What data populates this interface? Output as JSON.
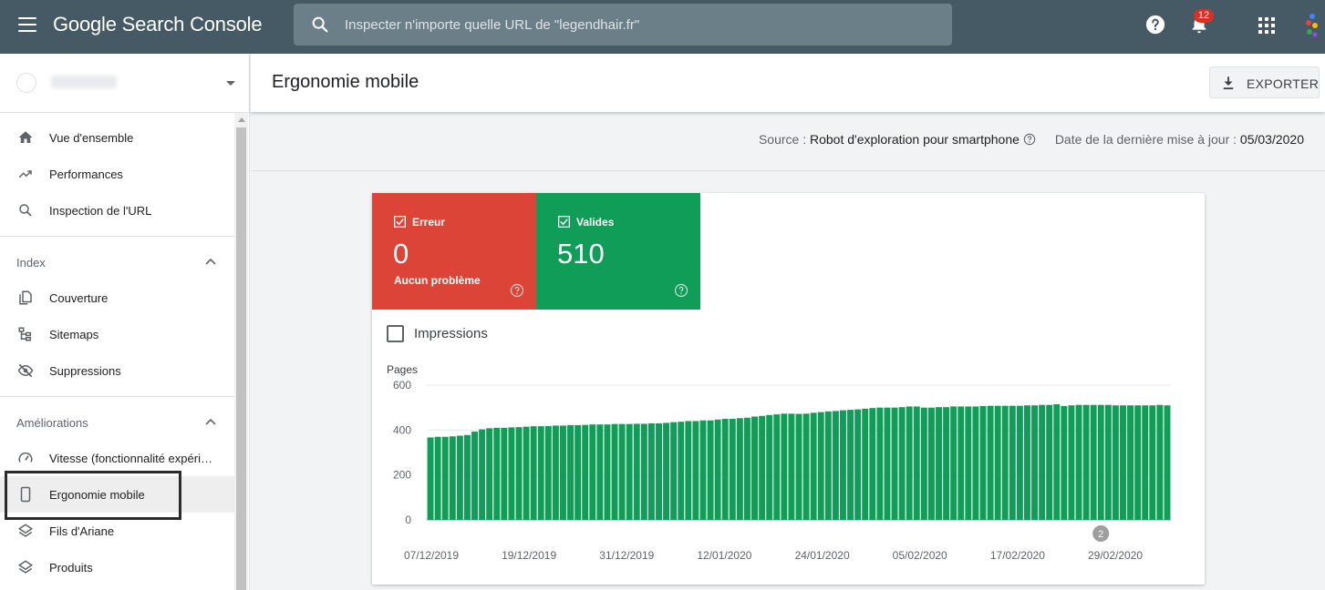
{
  "app": {
    "title": "Google Search Console"
  },
  "search": {
    "placeholder": "Inspecter n'importe quelle URL de \"legendhair.fr\""
  },
  "notifications": {
    "count": "12"
  },
  "sidebar": {
    "main_items": [
      {
        "label": "Vue d'ensemble",
        "icon": "home-icon"
      },
      {
        "label": "Performances",
        "icon": "trending-up-icon"
      },
      {
        "label": "Inspection de l'URL",
        "icon": "search-icon"
      }
    ],
    "sections": [
      {
        "title": "Index",
        "items": [
          {
            "label": "Couverture",
            "icon": "coverage-icon"
          },
          {
            "label": "Sitemaps",
            "icon": "sitemap-icon"
          },
          {
            "label": "Suppressions",
            "icon": "eye-off-icon"
          }
        ]
      },
      {
        "title": "Améliorations",
        "items": [
          {
            "label": "Vitesse (fonctionnalité expérimentale)",
            "icon": "speed-icon"
          },
          {
            "label": "Ergonomie mobile",
            "icon": "smartphone-icon",
            "active": true
          },
          {
            "label": "Fils d'Ariane",
            "icon": "layers-icon"
          },
          {
            "label": "Produits",
            "icon": "layers-icon"
          }
        ]
      }
    ]
  },
  "page": {
    "title": "Ergonomie mobile",
    "export_label": "EXPORTER",
    "source_label": "Source :",
    "source_value": "Robot d'exploration pour smartphone",
    "update_label": "Date de la dernière mise à jour :",
    "update_value": "05/03/2020"
  },
  "tiles": {
    "error": {
      "label": "Erreur",
      "value": "0",
      "sub": "Aucun problème",
      "color": "#db4437"
    },
    "valid": {
      "label": "Valides",
      "value": "510",
      "color": "#0f9d58"
    }
  },
  "impressions": {
    "label": "Impressions",
    "checked": false
  },
  "chart_data": {
    "type": "bar",
    "ylabel": "Pages",
    "ylim": [
      0,
      600
    ],
    "yticks": [
      0,
      200,
      400,
      600
    ],
    "xtick_labels": [
      "07/12/2019",
      "19/12/2019",
      "31/12/2019",
      "12/01/2020",
      "24/01/2020",
      "05/02/2020",
      "17/02/2020",
      "29/02/2020"
    ],
    "series": [
      {
        "color": "#0f9d58",
        "values": [
          367,
          370,
          370,
          372,
          375,
          378,
          393,
          403,
          408,
          410,
          410,
          412,
          413,
          415,
          417,
          417,
          418,
          420,
          420,
          422,
          422,
          423,
          425,
          425,
          425,
          427,
          427,
          427,
          428,
          428,
          430,
          430,
          432,
          435,
          437,
          440,
          440,
          443,
          443,
          447,
          450,
          450,
          453,
          455,
          460,
          463,
          467,
          470,
          473,
          473,
          472,
          473,
          477,
          480,
          483,
          485,
          488,
          490,
          492,
          495,
          498,
          500,
          500,
          500,
          502,
          505,
          505,
          500,
          500,
          502,
          502,
          505,
          505,
          505,
          505,
          507,
          508,
          508,
          508,
          508,
          508,
          510,
          510,
          512,
          512,
          515,
          507,
          510,
          512,
          512,
          512,
          512,
          512,
          510,
          510,
          510,
          510,
          510,
          510,
          512,
          510
        ]
      }
    ],
    "annotations": [
      {
        "label": "2",
        "index": 91
      }
    ],
    "grid": true
  }
}
